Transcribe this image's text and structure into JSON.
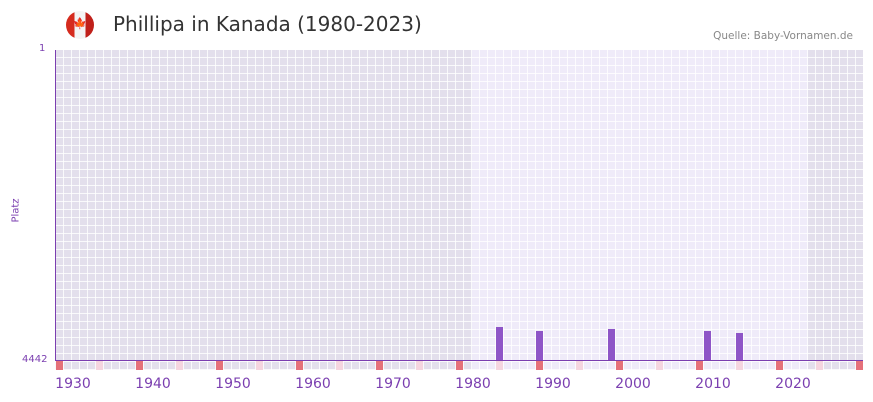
{
  "header": {
    "title": "Phillipa in Kanada (1980-2023)",
    "source": "Quelle: Baby-Vornamen.de",
    "flag_icon": "canada-flag-icon"
  },
  "chart_data": {
    "type": "bar",
    "title": "Phillipa in Kanada (1980-2023)",
    "ylabel": "Platz",
    "xlabel": "",
    "ylim": [
      4442,
      1
    ],
    "y_ticks": [
      "1",
      "4442"
    ],
    "xlim": [
      1928,
      2028
    ],
    "x_ticks": [
      "1930",
      "1940",
      "1950",
      "1960",
      "1970",
      "1980",
      "1990",
      "2000",
      "2010",
      "2020"
    ],
    "x": [
      1983,
      1988,
      1997,
      2009,
      2013
    ],
    "values": [
      3970,
      4027,
      3998,
      4027,
      4055
    ],
    "highlight_range": [
      1980,
      2021
    ],
    "colors": {
      "bar": "#8e55c7",
      "axis": "#7b3fb0",
      "bg_out": "#e3dfec",
      "bg_in": "#efebf9"
    }
  }
}
